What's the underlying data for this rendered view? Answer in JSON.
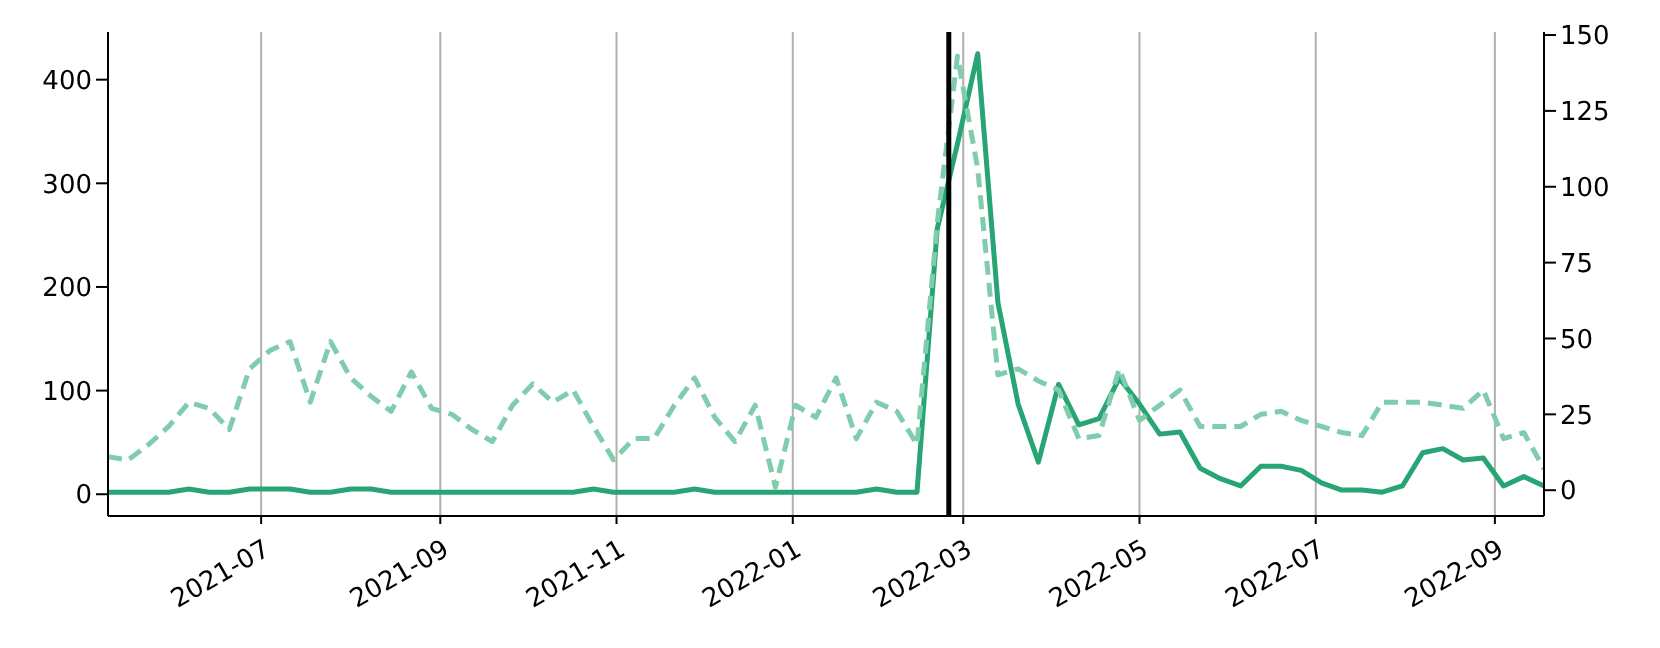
{
  "chart_data": {
    "type": "line",
    "x": [
      "2021-05-09",
      "2021-05-16",
      "2021-05-23",
      "2021-05-30",
      "2021-06-06",
      "2021-06-13",
      "2021-06-20",
      "2021-06-27",
      "2021-07-04",
      "2021-07-11",
      "2021-07-18",
      "2021-07-25",
      "2021-08-01",
      "2021-08-08",
      "2021-08-15",
      "2021-08-22",
      "2021-08-29",
      "2021-09-05",
      "2021-09-12",
      "2021-09-19",
      "2021-09-26",
      "2021-10-03",
      "2021-10-10",
      "2021-10-17",
      "2021-10-24",
      "2021-10-31",
      "2021-11-07",
      "2021-11-14",
      "2021-11-21",
      "2021-11-28",
      "2021-12-05",
      "2021-12-12",
      "2021-12-19",
      "2021-12-26",
      "2022-01-02",
      "2022-01-09",
      "2022-01-16",
      "2022-01-23",
      "2022-01-30",
      "2022-02-06",
      "2022-02-13",
      "2022-02-20",
      "2022-02-27",
      "2022-03-06",
      "2022-03-13",
      "2022-03-20",
      "2022-03-27",
      "2022-04-03",
      "2022-04-10",
      "2022-04-17",
      "2022-04-24",
      "2022-05-01",
      "2022-05-08",
      "2022-05-15",
      "2022-05-22",
      "2022-05-29",
      "2022-06-05",
      "2022-06-12",
      "2022-06-19",
      "2022-06-26",
      "2022-07-03",
      "2022-07-10",
      "2022-07-17",
      "2022-07-24",
      "2022-07-31",
      "2022-08-07",
      "2022-08-14",
      "2022-08-21",
      "2022-08-28",
      "2022-09-04",
      "2022-09-11",
      "2022-09-18"
    ],
    "series": [
      {
        "color": "#27a574",
        "line_style": "solid",
        "values": [
          2,
          2,
          2,
          2,
          5,
          2,
          2,
          5,
          5,
          5,
          2,
          2,
          5,
          5,
          2,
          2,
          2,
          2,
          2,
          2,
          2,
          2,
          2,
          2,
          5,
          2,
          2,
          2,
          2,
          5,
          2,
          2,
          2,
          2,
          2,
          2,
          2,
          2,
          5,
          2,
          2,
          256,
          338,
          425,
          185,
          87,
          31,
          106,
          67,
          73,
          112,
          87,
          58,
          60,
          25,
          15,
          8,
          27,
          27,
          23,
          11,
          4,
          4,
          2,
          8,
          40,
          44,
          33,
          35,
          8,
          17,
          8
        ]
      },
      {
        "color": "#80cdad",
        "line_style": "dashed",
        "axis": "y2",
        "values": [
          11,
          10,
          15,
          21,
          29,
          27,
          20,
          40,
          46,
          49,
          29,
          49,
          37,
          31,
          26,
          39,
          27,
          25,
          20,
          16,
          28,
          35,
          29,
          33,
          21,
          10,
          17,
          17,
          28,
          37,
          24,
          16,
          28,
          1,
          28,
          24,
          37,
          17,
          29,
          26,
          15,
          88,
          143,
          106,
          38,
          40,
          36,
          33,
          17,
          18,
          40,
          23,
          28,
          33,
          21,
          21,
          21,
          25,
          26,
          23,
          21,
          19,
          18,
          29,
          29,
          29,
          28,
          27,
          33,
          17,
          19,
          7
        ]
      }
    ],
    "xlim": [
      "2021-05-09",
      "2022-09-18"
    ],
    "xticks": [
      "2021-07",
      "2021-09",
      "2021-11",
      "2022-01",
      "2022-03",
      "2022-05",
      "2022-07",
      "2022-09"
    ],
    "ylim": [
      -21,
      446
    ],
    "yticks": [
      0,
      100,
      200,
      300,
      400
    ],
    "y2lim": [
      -8.5,
      151
    ],
    "y2ticks": [
      0,
      25,
      50,
      75,
      100,
      125,
      150
    ],
    "ref_lines": [
      {
        "axis": "x",
        "value": "2022-02-24",
        "color": "#000000"
      }
    ],
    "grid": "x",
    "marker": "none"
  }
}
